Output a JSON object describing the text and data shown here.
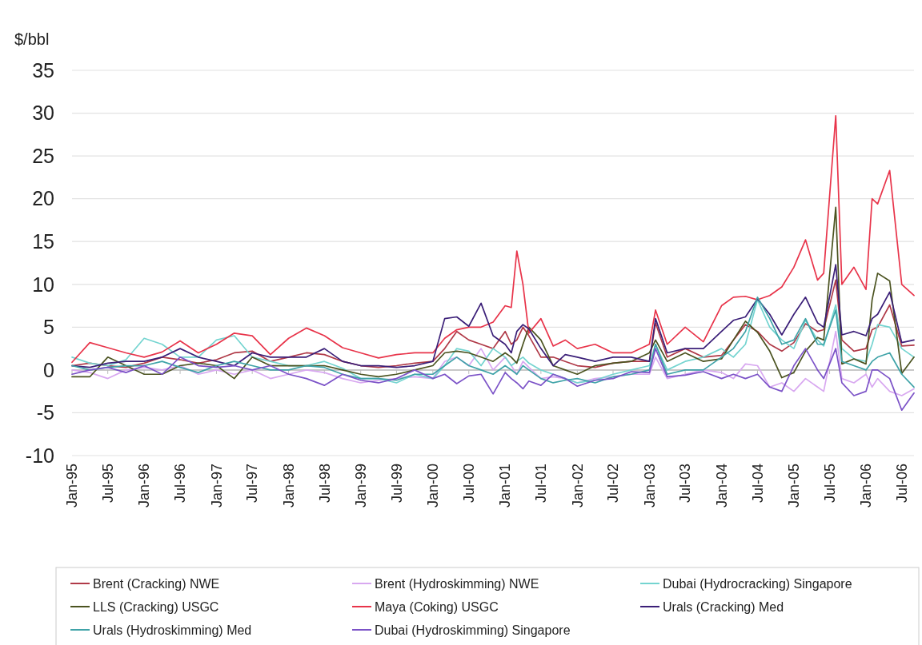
{
  "chart_data": {
    "type": "line",
    "ylabel": "$/bbl",
    "x": [
      "1995-01",
      "1995-04",
      "1995-07",
      "1995-10",
      "1996-01",
      "1996-04",
      "1996-07",
      "1996-10",
      "1997-01",
      "1997-04",
      "1997-07",
      "1997-10",
      "1998-01",
      "1998-04",
      "1998-07",
      "1998-10",
      "1999-01",
      "1999-04",
      "1999-07",
      "1999-10",
      "2000-01",
      "2000-03",
      "2000-05",
      "2000-07",
      "2000-09",
      "2000-11",
      "2001-01",
      "2001-02",
      "2001-03",
      "2001-04",
      "2001-05",
      "2001-07",
      "2001-09",
      "2001-11",
      "2002-01",
      "2002-04",
      "2002-07",
      "2002-10",
      "2003-01",
      "2003-02",
      "2003-04",
      "2003-07",
      "2003-10",
      "2004-01",
      "2004-03",
      "2004-05",
      "2004-07",
      "2004-09",
      "2004-11",
      "2005-01",
      "2005-03",
      "2005-05",
      "2005-06",
      "2005-08",
      "2005-09",
      "2005-11",
      "2006-01",
      "2006-02",
      "2006-03",
      "2006-05",
      "2006-07",
      "2006-09"
    ],
    "xlim": [
      "1995-01",
      "2006-09"
    ],
    "xticks": [
      {
        "value": "1995-01",
        "label": "Jan-95"
      },
      {
        "value": "1995-07",
        "label": "Jul-95"
      },
      {
        "value": "1996-01",
        "label": "Jan-96"
      },
      {
        "value": "1996-07",
        "label": "Jul-96"
      },
      {
        "value": "1997-01",
        "label": "Jan-97"
      },
      {
        "value": "1997-07",
        "label": "Jul-97"
      },
      {
        "value": "1998-01",
        "label": "Jan-98"
      },
      {
        "value": "1998-07",
        "label": "Jul-98"
      },
      {
        "value": "1999-01",
        "label": "Jan-99"
      },
      {
        "value": "1999-07",
        "label": "Jul-99"
      },
      {
        "value": "2000-01",
        "label": "Jan-00"
      },
      {
        "value": "2000-07",
        "label": "Jul-00"
      },
      {
        "value": "2001-01",
        "label": "Jan-01"
      },
      {
        "value": "2001-07",
        "label": "Jul-01"
      },
      {
        "value": "2002-01",
        "label": "Jan-02"
      },
      {
        "value": "2002-07",
        "label": "Jul-02"
      },
      {
        "value": "2003-01",
        "label": "Jan-03"
      },
      {
        "value": "2003-07",
        "label": "Jul-03"
      },
      {
        "value": "2004-01",
        "label": "Jan-04"
      },
      {
        "value": "2004-07",
        "label": "Jul-04"
      },
      {
        "value": "2005-01",
        "label": "Jan-05"
      },
      {
        "value": "2005-07",
        "label": "Jul-05"
      },
      {
        "value": "2006-01",
        "label": "Jan-06"
      },
      {
        "value": "2006-07",
        "label": "Jul-06"
      }
    ],
    "ylim": [
      -10,
      35
    ],
    "yticks": [
      -10,
      -5,
      0,
      5,
      10,
      15,
      20,
      25,
      30,
      35
    ],
    "grid": "y",
    "legend": "bottom",
    "marker": "none",
    "line_style": "solid",
    "series": [
      {
        "name": "Brent (Cracking) NWE",
        "color": "#b03a48",
        "values": [
          0.5,
          0.8,
          0.5,
          0.3,
          0.8,
          1.5,
          1.2,
          0.8,
          1.2,
          2.0,
          2.2,
          1.0,
          1.5,
          2.0,
          1.8,
          1.0,
          0.5,
          0.3,
          0.5,
          0.8,
          1.0,
          2.5,
          4.5,
          3.5,
          3.0,
          2.5,
          4.5,
          3.0,
          3.5,
          5.0,
          4.0,
          1.5,
          1.5,
          1.0,
          0.5,
          0.3,
          0.8,
          1.0,
          1.0,
          5.5,
          1.5,
          2.5,
          1.5,
          1.7,
          3.5,
          5.3,
          4.5,
          3.0,
          2.2,
          3.2,
          5.4,
          4.5,
          4.7,
          10.5,
          3.5,
          2.2,
          2.5,
          4.7,
          5.0,
          7.6,
          2.8,
          2.9
        ]
      },
      {
        "name": "Brent (Hydroskimming) NWE",
        "color": "#d8a8f0",
        "values": [
          0,
          -0.3,
          -1.0,
          0,
          0.3,
          0,
          0.5,
          -0.5,
          0,
          -0.5,
          0,
          -1.0,
          -0.5,
          0,
          -0.3,
          -1.0,
          -1.5,
          -1.2,
          -1.0,
          -0.8,
          -1.0,
          1.0,
          1.5,
          0.5,
          2.5,
          0,
          1.5,
          0.5,
          -0.5,
          1.0,
          0.3,
          -1.0,
          -0.8,
          -1.0,
          -1.5,
          -1.0,
          -0.8,
          -0.5,
          -0.5,
          1.5,
          -1.0,
          -0.5,
          0,
          -0.3,
          -1.0,
          0.7,
          0.5,
          -2.0,
          -1.5,
          -2.5,
          -1.0,
          -2.0,
          -2.5,
          4.5,
          -1.0,
          -1.5,
          -0.5,
          -2.0,
          -1.0,
          -2.5,
          -3.0,
          -2.2
        ]
      },
      {
        "name": "Dubai (Hydrocracking) Singapore",
        "color": "#74d4d0",
        "values": [
          1.5,
          0.8,
          0.5,
          1.2,
          3.7,
          3.0,
          1.5,
          1.5,
          3.5,
          4.0,
          1.5,
          1.0,
          0.5,
          0.5,
          1.0,
          0.2,
          -1.0,
          -1.0,
          -1.5,
          -0.5,
          -1.0,
          0.5,
          2.5,
          2.2,
          0.5,
          2.5,
          1.5,
          0.5,
          1.0,
          1.5,
          0.8,
          0,
          -0.5,
          -1.0,
          -1.5,
          -1.2,
          -0.5,
          0,
          0.5,
          3.0,
          0,
          1.0,
          1.5,
          2.5,
          1.5,
          3.0,
          8.2,
          5.0,
          3.5,
          2.5,
          5.8,
          3.5,
          2.8,
          7.6,
          2.5,
          1.3,
          1.0,
          3.0,
          5.3,
          5.0,
          2.5,
          1.5
        ]
      },
      {
        "name": "LLS (Cracking) USGC",
        "color": "#4b5320",
        "values": [
          -0.8,
          -0.8,
          1.5,
          0.5,
          -0.5,
          -0.5,
          0.5,
          0.8,
          0.5,
          -1.0,
          1.5,
          0.5,
          0.5,
          0.5,
          0.5,
          0,
          -0.5,
          -0.8,
          -0.5,
          0,
          0.5,
          2.0,
          2.2,
          2.0,
          1.5,
          1.0,
          2.0,
          1.5,
          0.8,
          3.0,
          5.0,
          3.5,
          0.5,
          0,
          -0.5,
          0.5,
          0.8,
          1.0,
          2.0,
          3.5,
          1.0,
          2.0,
          1.0,
          1.3,
          3.5,
          5.7,
          4.4,
          2.2,
          -0.9,
          -0.3,
          2.2,
          3.8,
          3.5,
          19.0,
          0.7,
          1.3,
          0.7,
          8.2,
          11.3,
          10.4,
          -0.4,
          1.5
        ]
      },
      {
        "name": "Maya (Coking) USGC",
        "color": "#e8344a",
        "values": [
          0.9,
          3.2,
          2.6,
          2.0,
          1.5,
          2.1,
          3.4,
          2.0,
          3.0,
          4.3,
          4.0,
          1.8,
          3.7,
          4.9,
          4.0,
          2.6,
          2.0,
          1.4,
          1.8,
          2.0,
          2.0,
          3.7,
          4.7,
          5.0,
          5.0,
          5.6,
          7.5,
          7.3,
          13.9,
          10,
          4.3,
          6.0,
          2.8,
          3.5,
          2.5,
          3.0,
          2.0,
          2.0,
          3.0,
          7.0,
          3.0,
          5.0,
          3.3,
          7.5,
          8.5,
          8.6,
          8.2,
          8.7,
          9.7,
          12,
          15.2,
          10.5,
          11.3,
          29.7,
          10,
          12,
          9.4,
          20,
          19.4,
          23.3,
          10,
          8.7
        ]
      },
      {
        "name": "Urals (Cracking) Med",
        "color": "#3b1f78",
        "values": [
          0.5,
          0.3,
          0.8,
          1.0,
          1.0,
          1.5,
          2.5,
          1.5,
          1.0,
          0.5,
          2.0,
          1.5,
          1.5,
          1.5,
          2.5,
          1.0,
          0.5,
          0.5,
          0.3,
          0.5,
          1.0,
          6.0,
          6.2,
          5.1,
          7.8,
          4.0,
          3.0,
          2.0,
          4.5,
          5.3,
          4.8,
          2.5,
          0.5,
          1.8,
          1.5,
          1.0,
          1.5,
          1.5,
          1.0,
          6.0,
          2.0,
          2.5,
          2.5,
          4.5,
          5.8,
          6.2,
          8.3,
          6.5,
          4.1,
          6.5,
          8.5,
          5.5,
          5.0,
          12.3,
          4.1,
          4.5,
          4.0,
          6.0,
          6.5,
          9.1,
          3.2,
          3.5
        ]
      },
      {
        "name": "Urals (Hydroskimming) Med",
        "color": "#3fa3a8",
        "values": [
          0.5,
          0,
          0.3,
          0.5,
          0.5,
          1.0,
          0.3,
          -0.3,
          0.5,
          1.0,
          0.5,
          0,
          0,
          0.5,
          0.3,
          -0.5,
          -1.0,
          -1.0,
          -1.2,
          -0.5,
          -0.5,
          0.5,
          1.5,
          0.5,
          0,
          -0.5,
          0.5,
          0,
          -0.5,
          0.5,
          0,
          -1.0,
          -1.5,
          -1.2,
          -1.0,
          -1.5,
          -0.8,
          -0.5,
          0,
          3.0,
          -0.5,
          0,
          0,
          1.5,
          2.5,
          4.5,
          8.5,
          6.0,
          3.0,
          3.5,
          6.0,
          3.0,
          3.0,
          7.0,
          1.0,
          0.5,
          0,
          1.0,
          1.5,
          2.0,
          -0.5,
          -2.0
        ]
      },
      {
        "name": "Dubai (Hydroskimming) Singapore",
        "color": "#7b52c7",
        "values": [
          -0.5,
          0,
          0.3,
          -0.3,
          0.5,
          -0.5,
          1.5,
          0.5,
          0.3,
          0.5,
          0,
          0.5,
          -0.5,
          -1.0,
          -1.8,
          -0.5,
          -1.2,
          -1.5,
          -1.0,
          0,
          -1.0,
          -0.5,
          -1.6,
          -0.7,
          -0.5,
          -2.8,
          -0.3,
          -1.0,
          -1.5,
          -2.2,
          -1.3,
          -1.8,
          -0.5,
          -1.0,
          -1.9,
          -1.2,
          -1.0,
          -0.2,
          -0.3,
          2.5,
          -0.8,
          -0.6,
          -0.2,
          -1.0,
          -0.5,
          -1.0,
          -0.5,
          -2.0,
          -2.5,
          0.5,
          2.5,
          0,
          -1.0,
          2.5,
          -1.5,
          -3.0,
          -2.5,
          0,
          0,
          -1.0,
          -4.7,
          -2.7
        ]
      }
    ]
  }
}
